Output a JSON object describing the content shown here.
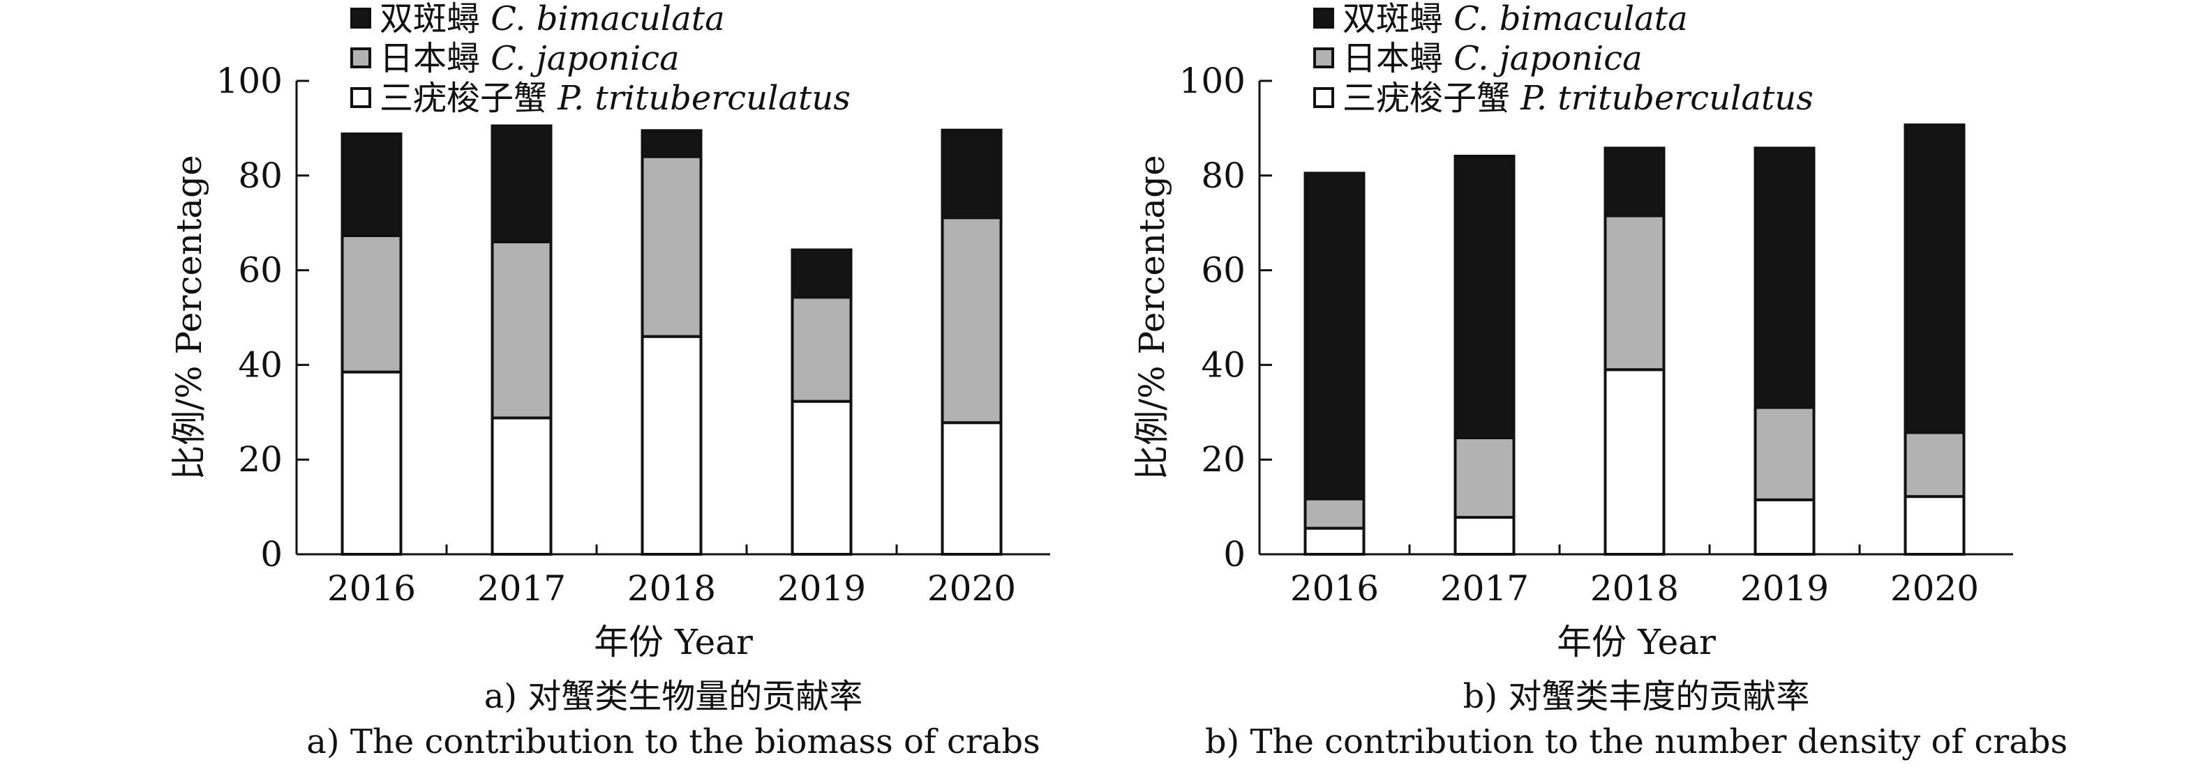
{
  "legend": [
    {
      "zh": "双斑蟳",
      "latin": "C. bimaculata",
      "color": "#141414"
    },
    {
      "zh": "日本蟳",
      "latin": "C. japonica",
      "color": "#b3b2b3"
    },
    {
      "zh": "三疣梭子蟹",
      "latin": "P. trituberculatus",
      "color": "#ffffff"
    }
  ],
  "chart_data": [
    {
      "type": "bar",
      "stacked": true,
      "categories": [
        "2016",
        "2017",
        "2018",
        "2019",
        "2020"
      ],
      "series": [
        {
          "name": "三疣梭子蟹 P. trituberculatus",
          "color": "#ffffff",
          "values": [
            38.5,
            28.8,
            46.0,
            32.3,
            27.8
          ]
        },
        {
          "name": "日本蟳 C. japonica",
          "color": "#b3b2b3",
          "values": [
            28.8,
            37.2,
            38.0,
            22.0,
            43.3
          ]
        },
        {
          "name": "双斑蟳 C. bimaculata",
          "color": "#141414",
          "values": [
            21.5,
            24.5,
            5.5,
            10.0,
            18.5
          ]
        }
      ],
      "xlabel": "年份 Year",
      "ylabel": "比例/% Percentage",
      "ylim": [
        0,
        100
      ],
      "yticks": [
        0,
        20,
        40,
        60,
        80,
        100
      ],
      "caption_zh": "a) 对蟹类生物量的贡献率",
      "caption_en": "a) The contribution to the biomass of crabs"
    },
    {
      "type": "bar",
      "stacked": true,
      "categories": [
        "2016",
        "2017",
        "2018",
        "2019",
        "2020"
      ],
      "series": [
        {
          "name": "三疣梭子蟹 P. trituberculatus",
          "color": "#ffffff",
          "values": [
            5.5,
            7.8,
            39.0,
            11.5,
            12.2
          ]
        },
        {
          "name": "日本蟳 C. japonica",
          "color": "#b3b2b3",
          "values": [
            6.2,
            16.8,
            32.5,
            19.5,
            13.5
          ]
        },
        {
          "name": "双斑蟳 C. bimaculata",
          "color": "#141414",
          "values": [
            68.8,
            59.5,
            14.3,
            54.8,
            65.0
          ]
        }
      ],
      "xlabel": "年份 Year",
      "ylabel": "比例/% Percentage",
      "ylim": [
        0,
        100
      ],
      "yticks": [
        0,
        20,
        40,
        60,
        80,
        100
      ],
      "caption_zh": "b) 对蟹类丰度的贡献率",
      "caption_en": "b) The contribution to the number density of crabs"
    }
  ]
}
